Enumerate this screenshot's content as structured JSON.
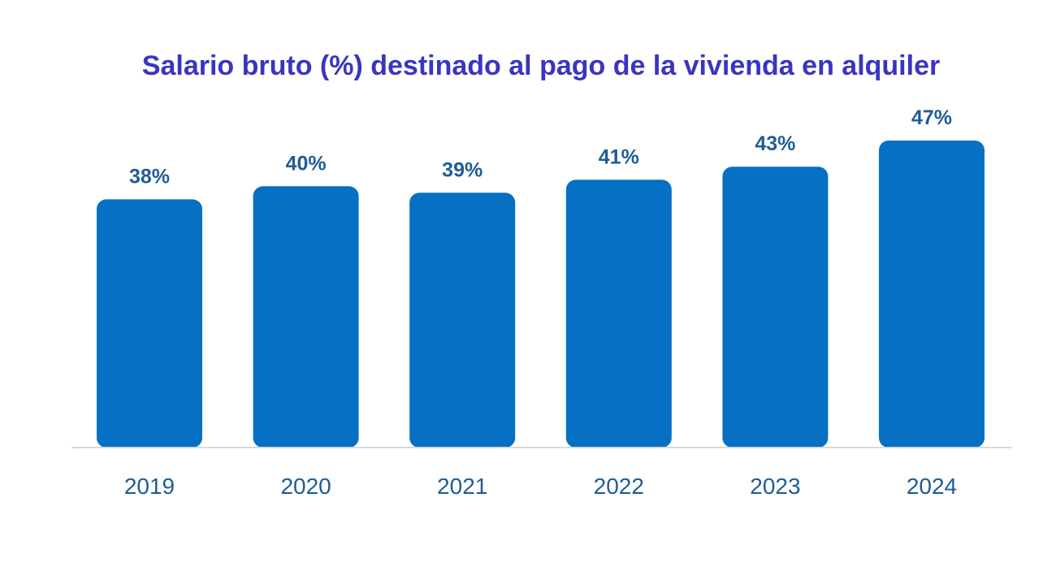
{
  "chart_data": {
    "type": "bar",
    "title": "Salario bruto (%) destinado al pago de la vivienda en alquiler",
    "categories": [
      "2019",
      "2020",
      "2021",
      "2022",
      "2023",
      "2024"
    ],
    "values": [
      38,
      40,
      39,
      41,
      43,
      47
    ],
    "data_labels": [
      "38%",
      "40%",
      "39%",
      "41%",
      "43%",
      "47%"
    ],
    "unit": "%",
    "xlabel": "",
    "ylabel": "",
    "ylim": [
      0,
      47
    ],
    "grid": false,
    "legend": "none",
    "bar_color": "#0570c4",
    "title_color": "#3a35c0",
    "label_color": "#1f5c96"
  }
}
